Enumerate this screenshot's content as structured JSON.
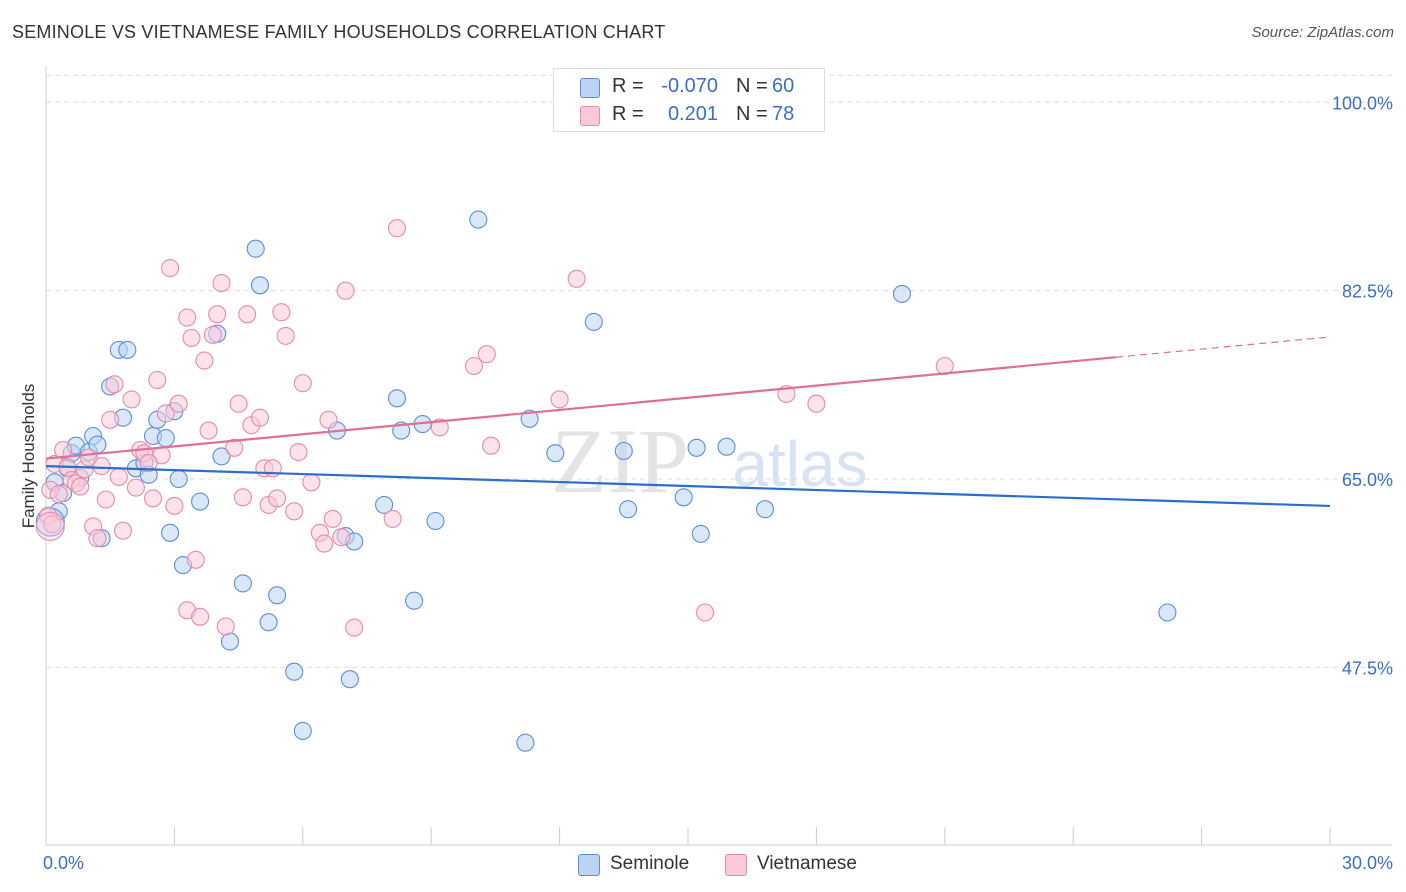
{
  "title": "SEMINOLE VS VIETNAMESE FAMILY HOUSEHOLDS CORRELATION CHART",
  "source": "Source: ZipAtlas.com",
  "watermark": {
    "zip": "ZIP",
    "atlas": "atlas"
  },
  "legend_top": {
    "rows": [
      {
        "r_label": "R =",
        "r_value": "-0.070",
        "n_label": "N =",
        "n_value": "60"
      },
      {
        "r_label": "R =",
        "r_value": "0.201",
        "n_label": "N =",
        "n_value": "78"
      }
    ]
  },
  "chart_data": {
    "type": "scatter",
    "title": "SEMINOLE VS VIETNAMESE FAMILY HOUSEHOLDS CORRELATION CHART",
    "xlabel": "",
    "ylabel": "Family Households",
    "xlim": [
      0.0,
      30.0
    ],
    "ylim": [
      31.0,
      103.0
    ],
    "x_tick_labels": [
      {
        "value": 0.0,
        "label": "0.0%"
      },
      {
        "value": 30.0,
        "label": "30.0%"
      }
    ],
    "y_tick_labels": [
      {
        "value": 100.0,
        "label": "100.0%"
      },
      {
        "value": 82.5,
        "label": "82.5%"
      },
      {
        "value": 65.0,
        "label": "65.0%"
      },
      {
        "value": 47.5,
        "label": "47.5%"
      }
    ],
    "colors": {
      "seminole": "#5b8fd6",
      "vietnamese": "#e98aa8",
      "seminole_line": "#2a6fcc",
      "vietnamese_line": "#e06f96",
      "axis_label": "#3a6fc9"
    },
    "series": [
      {
        "name": "Seminole",
        "r": -0.07,
        "n": 60,
        "trend": {
          "x0": 0.0,
          "y0": 66.2,
          "x1": 30.0,
          "y1": 62.5,
          "solid_until": 30.0
        },
        "points": [
          [
            0.2,
            64.7
          ],
          [
            0.3,
            62.0
          ],
          [
            0.5,
            66.0
          ],
          [
            0.6,
            67.4
          ],
          [
            0.7,
            68.1
          ],
          [
            0.8,
            65.1
          ],
          [
            1.0,
            67.5
          ],
          [
            1.1,
            69.0
          ],
          [
            1.2,
            68.2
          ],
          [
            1.5,
            73.6
          ],
          [
            1.7,
            77.0
          ],
          [
            1.9,
            77.0
          ],
          [
            1.8,
            70.7
          ],
          [
            2.1,
            66.0
          ],
          [
            2.3,
            66.5
          ],
          [
            2.4,
            65.4
          ],
          [
            2.5,
            69.0
          ],
          [
            2.6,
            70.5
          ],
          [
            2.8,
            68.8
          ],
          [
            3.0,
            71.3
          ],
          [
            3.1,
            65.0
          ],
          [
            3.2,
            57.0
          ],
          [
            2.9,
            60.0
          ],
          [
            3.6,
            62.9
          ],
          [
            4.0,
            78.5
          ],
          [
            4.1,
            67.1
          ],
          [
            4.3,
            49.9
          ],
          [
            4.6,
            55.3
          ],
          [
            4.9,
            86.4
          ],
          [
            5.0,
            83.0
          ],
          [
            5.2,
            51.7
          ],
          [
            5.4,
            54.2
          ],
          [
            5.8,
            47.1
          ],
          [
            6.0,
            41.6
          ],
          [
            6.8,
            69.5
          ],
          [
            7.0,
            59.7
          ],
          [
            7.1,
            46.4
          ],
          [
            7.2,
            59.2
          ],
          [
            7.9,
            62.6
          ],
          [
            8.2,
            72.5
          ],
          [
            8.3,
            69.5
          ],
          [
            8.6,
            53.7
          ],
          [
            8.8,
            70.1
          ],
          [
            9.1,
            61.1
          ],
          [
            10.1,
            89.1
          ],
          [
            11.2,
            40.5
          ],
          [
            11.3,
            70.6
          ],
          [
            11.9,
            67.4
          ],
          [
            12.8,
            79.6
          ],
          [
            13.5,
            67.6
          ],
          [
            13.6,
            62.2
          ],
          [
            14.9,
            63.3
          ],
          [
            15.2,
            67.9
          ],
          [
            15.3,
            59.9
          ],
          [
            15.9,
            68.0
          ],
          [
            16.8,
            62.2
          ],
          [
            20.0,
            82.2
          ],
          [
            26.2,
            52.6
          ],
          [
            0.4,
            63.7
          ],
          [
            1.3,
            59.5
          ]
        ]
      },
      {
        "name": "Vietnamese",
        "r": 0.201,
        "n": 78,
        "trend": {
          "x0": 0.0,
          "y0": 66.9,
          "x1": 30.0,
          "y1": 78.2,
          "solid_until": 25.0
        },
        "points": [
          [
            0.1,
            64.0
          ],
          [
            0.2,
            66.4
          ],
          [
            0.3,
            63.6
          ],
          [
            0.4,
            67.7
          ],
          [
            0.5,
            66.1
          ],
          [
            0.6,
            64.9
          ],
          [
            0.7,
            64.6
          ],
          [
            0.8,
            64.3
          ],
          [
            0.9,
            65.9
          ],
          [
            1.0,
            67.0
          ],
          [
            1.1,
            60.6
          ],
          [
            1.2,
            59.5
          ],
          [
            1.3,
            66.2
          ],
          [
            1.4,
            63.1
          ],
          [
            1.6,
            73.8
          ],
          [
            1.7,
            65.2
          ],
          [
            1.8,
            60.2
          ],
          [
            2.0,
            72.4
          ],
          [
            2.1,
            64.2
          ],
          [
            2.2,
            67.7
          ],
          [
            2.3,
            67.4
          ],
          [
            2.5,
            63.2
          ],
          [
            2.6,
            74.2
          ],
          [
            2.7,
            67.2
          ],
          [
            2.8,
            71.1
          ],
          [
            2.9,
            84.6
          ],
          [
            3.0,
            62.5
          ],
          [
            3.1,
            72.0
          ],
          [
            3.3,
            80.0
          ],
          [
            3.3,
            52.8
          ],
          [
            3.4,
            78.1
          ],
          [
            3.5,
            57.5
          ],
          [
            3.6,
            52.2
          ],
          [
            3.7,
            76.0
          ],
          [
            3.8,
            69.5
          ],
          [
            3.9,
            78.4
          ],
          [
            4.0,
            80.3
          ],
          [
            4.1,
            83.2
          ],
          [
            4.2,
            51.3
          ],
          [
            4.4,
            67.9
          ],
          [
            4.5,
            72.0
          ],
          [
            4.6,
            63.3
          ],
          [
            4.7,
            80.3
          ],
          [
            4.8,
            70.0
          ],
          [
            5.0,
            70.7
          ],
          [
            5.1,
            66.0
          ],
          [
            5.2,
            62.6
          ],
          [
            5.3,
            66.0
          ],
          [
            5.4,
            63.2
          ],
          [
            5.5,
            80.5
          ],
          [
            5.6,
            78.3
          ],
          [
            5.8,
            62.0
          ],
          [
            5.9,
            67.5
          ],
          [
            6.0,
            73.9
          ],
          [
            6.2,
            64.7
          ],
          [
            6.4,
            60.0
          ],
          [
            6.5,
            59.0
          ],
          [
            6.6,
            70.5
          ],
          [
            6.7,
            61.3
          ],
          [
            7.0,
            82.5
          ],
          [
            7.2,
            51.2
          ],
          [
            8.1,
            61.3
          ],
          [
            8.2,
            88.3
          ],
          [
            9.2,
            69.8
          ],
          [
            10.0,
            75.5
          ],
          [
            10.3,
            76.6
          ],
          [
            10.4,
            68.1
          ],
          [
            12.0,
            72.4
          ],
          [
            12.4,
            83.6
          ],
          [
            15.4,
            52.6
          ],
          [
            17.3,
            72.9
          ],
          [
            18.0,
            72.0
          ],
          [
            21.0,
            75.5
          ],
          [
            0.05,
            61.6
          ],
          [
            0.15,
            60.8
          ],
          [
            1.5,
            70.5
          ],
          [
            2.4,
            66.5
          ],
          [
            6.9,
            59.6
          ]
        ]
      }
    ],
    "legend": [
      "Seminole",
      "Vietnamese"
    ]
  }
}
